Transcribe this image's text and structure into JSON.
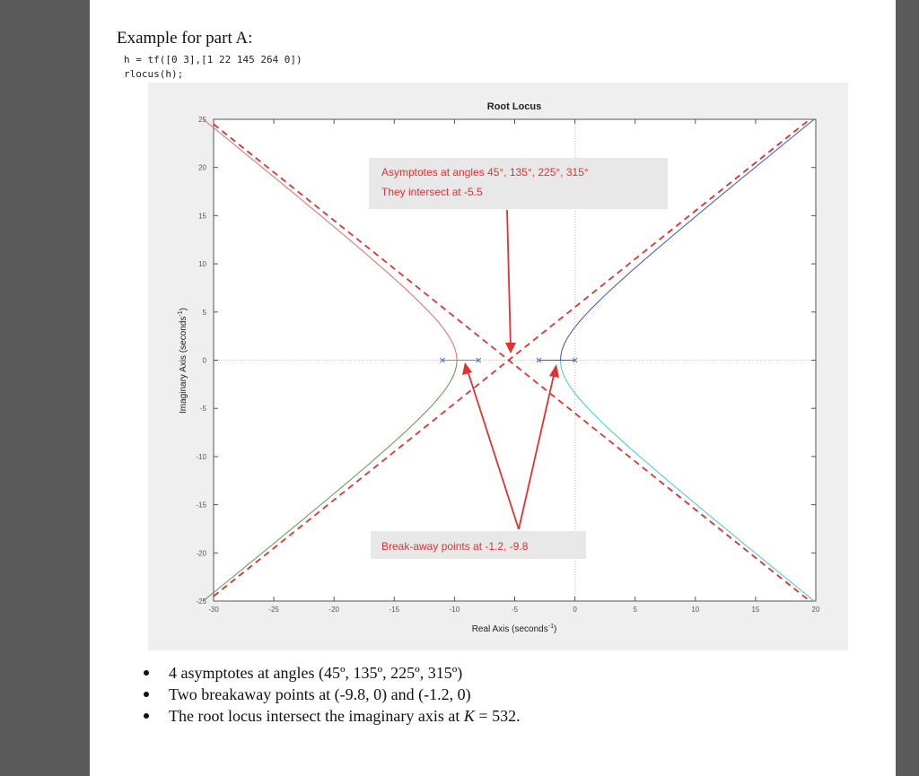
{
  "document": {
    "title": "Example for part A:",
    "code_lines": [
      "h = tf([0 3],[1 22 145 264 0])",
      "rlocus(h);"
    ],
    "bullets": [
      "4 asymptotes at angles (45º, 135º, 225º, 315º)",
      "Two breakaway points at (-9.8, 0) and (-1.2, 0)"
    ],
    "bullet3": {
      "prefix": "The root locus intersect the imaginary axis at ",
      "var": "K",
      "suffix": " = 532."
    }
  },
  "chart_data": {
    "type": "line",
    "title": "Root Locus",
    "xlabel": "Real Axis (seconds",
    "ylabel": "Imaginary Axis (seconds",
    "label_exponent": "-1",
    "label_close": ")",
    "xlim": [
      -30,
      20
    ],
    "ylim": [
      -25,
      25
    ],
    "x_ticks": [
      "-30",
      "-25",
      "-20",
      "-15",
      "-10",
      "-5",
      "0",
      "5",
      "10",
      "15",
      "20"
    ],
    "y_ticks": [
      "25",
      "20",
      "15",
      "10",
      "5",
      "0",
      "-5",
      "-10",
      "-15",
      "-20",
      "-25"
    ],
    "poles": [
      -11,
      -8,
      -3,
      0
    ],
    "asymptote_center": -5.5,
    "asymptote_angles_deg": [
      45,
      135,
      225,
      315
    ],
    "breakaway_points": [
      -9.8,
      -1.2
    ],
    "asymptote_color": "#e53030",
    "branch_colors": [
      "#e36a6a",
      "#5a9a4a",
      "#3a50e0",
      "#40c8d8"
    ],
    "pole_color": "#3a6ed8",
    "annotations": {
      "asymptote_line1": "Asymptotes at angles 45°, 135°, 225°, 315°",
      "asymptote_line2": "They intersect at -5.5",
      "breakaway": "Break-away points at -1.2, -9.8"
    },
    "annotation_color": "#e53030"
  }
}
